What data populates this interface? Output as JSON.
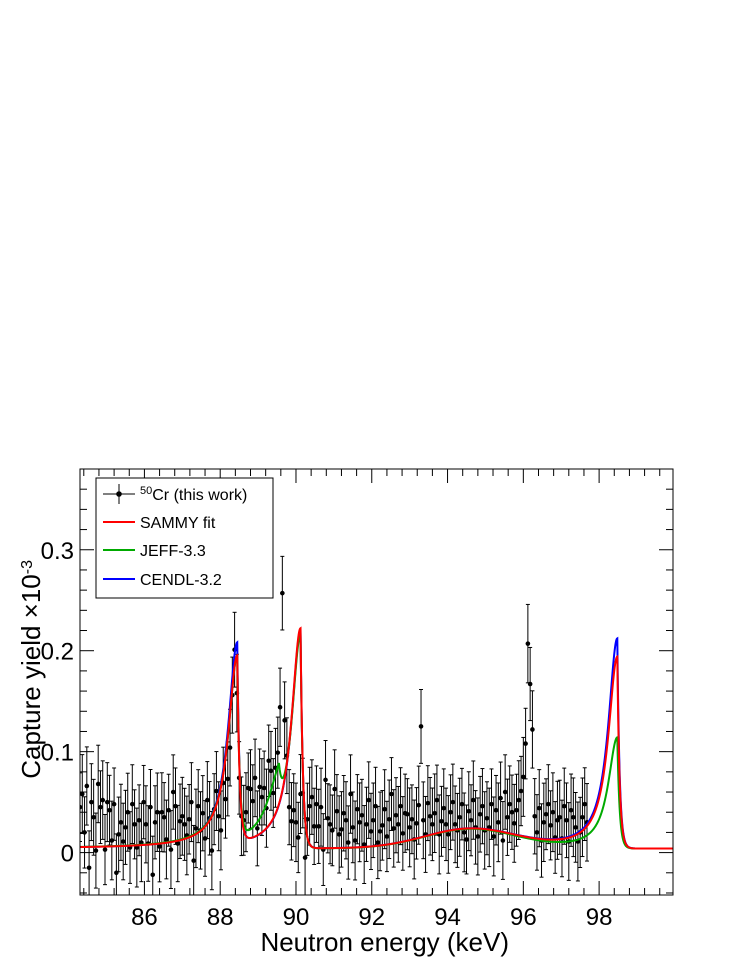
{
  "chart_data": {
    "type": "scatter",
    "xlabel": "Neutron energy (keV)",
    "ylabel": "Capture yield ×10",
    "ylabel_exponent": "-3",
    "xlim": [
      84.3,
      99.95
    ],
    "ylim": [
      -0.042,
      0.38
    ],
    "x_ticks": [
      86,
      88,
      90,
      92,
      94,
      96,
      98
    ],
    "x_tick_labels": [
      "86",
      "88",
      "90",
      "92",
      "94",
      "96",
      "98"
    ],
    "y_ticks": [
      0,
      0.1,
      0.2,
      0.3
    ],
    "y_tick_labels": [
      "0",
      "0.1",
      "0.2",
      "0.3"
    ],
    "legend_position": "top-left",
    "legend": [
      {
        "label_sup": "50",
        "label": "Cr (this work)",
        "color": "#000000",
        "marker": "dot"
      },
      {
        "label": "SAMMY fit",
        "color": "#ff0000"
      },
      {
        "label": "JEFF-3.3",
        "color": "#00aa00"
      },
      {
        "label": "CENDL-3.2",
        "color": "#0000ff"
      }
    ],
    "measured": {
      "name": "Cr (this work)",
      "x_start": 84.3,
      "x_step": 0.06,
      "y": [
        0.045,
        0.058,
        0.02,
        0.066,
        -0.015,
        0.05,
        0.035,
        0.002,
        0.068,
        0.045,
        0.052,
        0.003,
        0.05,
        0.042,
        0.012,
        0.048,
        -0.02,
        0.018,
        0.03,
        0.011,
        0.025,
        0.04,
        0.005,
        0.048,
        0.028,
        0.005,
        0.032,
        0.01,
        0.05,
        0.028,
        0.009,
        0.045,
        -0.022,
        0.03,
        0.04,
        0.006,
        0.04,
        0.035,
        0.013,
        0.042,
        0.003,
        0.06,
        0.046,
        0.009,
        0.031,
        0.036,
        0.028,
        0.017,
        0.033,
        0.05,
        -0.008,
        0.024,
        0.046,
        0.022,
        0.039,
        0.014,
        0.052,
        0.034,
        0.002,
        0.043,
        0.061,
        0.036,
        0.022,
        0.069,
        0.053,
        0.073,
        0.104,
        0.156,
        0.201,
        0.158,
        0.074,
        0.036,
        0.032,
        0.04,
        0.064,
        0.063,
        0.051,
        0.074,
        0.024,
        0.065,
        0.055,
        0.064,
        0.044,
        0.091,
        0.081,
        0.059,
        0.084,
        0.099,
        0.144,
        0.257,
        0.131,
        0.096,
        0.045,
        0.031,
        0.042,
        0.03,
        0.015,
        0.058,
        0.059,
        -0.005,
        0.033,
        0.046,
        0.055,
        0.026,
        0.048,
        0.026,
        0.045,
        0.003,
        0.072,
        0.034,
        0.028,
        0.022,
        0.063,
        0.041,
        0.018,
        0.023,
        0.039,
        0.032,
        0.01,
        0.058,
        0.025,
        0.012,
        0.043,
        0.03,
        0.037,
        0.008,
        0.028,
        0.052,
        0.021,
        0.032,
        0.046,
        0.01,
        0.021,
        0.027,
        0.043,
        0.016,
        0.033,
        0.058,
        0.024,
        0.037,
        0.028,
        0.046,
        0.019,
        0.039,
        0.038,
        0.025,
        0.033,
        0.013,
        0.029,
        0.047,
        0.125,
        0.032,
        0.018,
        0.049,
        0.036,
        0.028,
        0.039,
        0.052,
        0.018,
        0.031,
        0.044,
        0.028,
        0.018,
        0.04,
        0.05,
        0.028,
        0.022,
        0.035,
        0.048,
        0.02,
        0.013,
        0.041,
        0.032,
        0.052,
        0.025,
        0.016,
        0.038,
        0.046,
        0.022,
        0.034,
        0.025,
        0.048,
        0.016,
        0.042,
        0.03,
        0.054,
        0.012,
        0.06,
        0.035,
        0.048,
        0.04,
        0.029,
        0.042,
        0.052,
        0.061,
        0.075,
        0.108,
        0.207,
        0.167,
        0.122,
        0.036,
        0.02,
        0.044,
        0.012,
        0.03,
        0.038,
        0.048,
        0.027,
        0.04,
        0.015,
        0.032,
        0.035,
        0.014,
        0.046,
        0.032,
        0.011,
        0.042,
        0.035,
        0.025,
        0.011,
        0.02,
        0.035,
        0.048,
        0.03
      ],
      "y_error": 0.034
    },
    "series": [
      {
        "name": "SAMMY fit",
        "color": "#ff0000"
      },
      {
        "name": "JEFF-3.3",
        "color": "#00aa00"
      },
      {
        "name": "CENDL-3.2",
        "color": "#0000ff"
      }
    ],
    "resonances": [
      {
        "energy": 88.45,
        "sammy_peak": 0.185,
        "jeff_peak": 0.18,
        "cendl_peak": 0.198
      },
      {
        "energy": 89.55,
        "jeff_peak": 0.042
      },
      {
        "energy": 90.12,
        "sammy_peak": 0.218,
        "jeff_peak": 0.212,
        "cendl_peak": 0.215
      },
      {
        "energy": 98.48,
        "sammy_peak": 0.19,
        "jeff_peak": 0.11,
        "cendl_peak": 0.208
      }
    ],
    "baseline": 0.004,
    "broad_bump": {
      "energy": 94.6,
      "height": 0.019
    }
  }
}
